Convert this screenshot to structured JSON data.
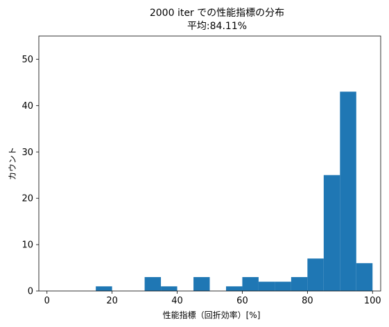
{
  "chart_data": {
    "type": "bar",
    "title": "2000 iter での性能指標の分布",
    "subtitle": "平均:84.11%",
    "xlabel": "性能指標（回折効率）[%]",
    "ylabel": "カウント",
    "xlim": [
      -2.5,
      102.5
    ],
    "ylim": [
      0,
      55
    ],
    "xticks": [
      0,
      20,
      40,
      60,
      80,
      100
    ],
    "yticks": [
      0,
      10,
      20,
      30,
      40,
      50
    ],
    "bin_edges": [
      15,
      20,
      25,
      30,
      35,
      40,
      45,
      50,
      55,
      60,
      65,
      70,
      75,
      80,
      85,
      90,
      95,
      100
    ],
    "counts": [
      1,
      0,
      0,
      3,
      1,
      0,
      3,
      0,
      1,
      3,
      2,
      2,
      3,
      7,
      25,
      43,
      6
    ],
    "bar_color": "#1f77b4",
    "grid": false,
    "legend": null
  }
}
